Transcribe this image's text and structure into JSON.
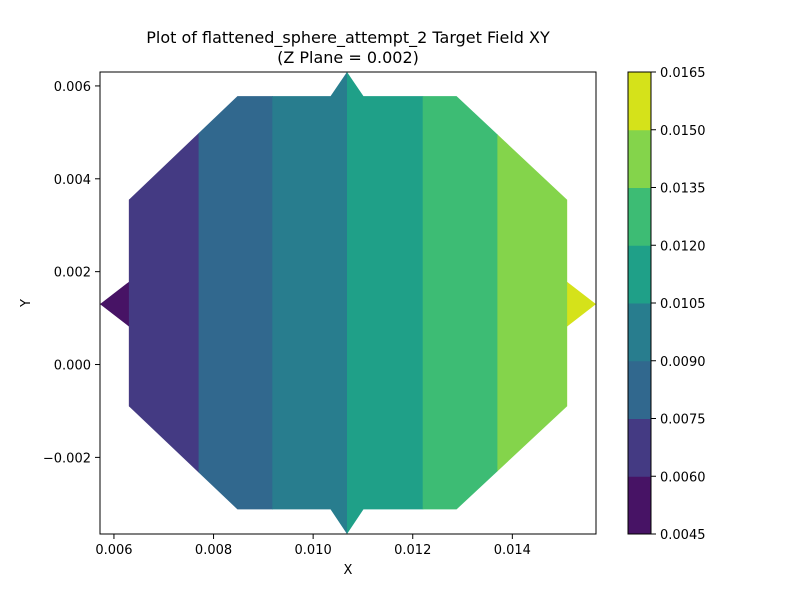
{
  "chart_data": {
    "type": "heatmap",
    "title": "Plot of flattened_sphere_attempt_2 Target Field XY",
    "subtitle": "(Z Plane = 0.002)",
    "xlabel": "X",
    "ylabel": "Y",
    "xlim": [
      0.00572,
      0.01568
    ],
    "ylim": [
      -0.00365,
      0.0063
    ],
    "xticks": [
      0.006,
      0.008,
      0.01,
      0.012,
      0.014
    ],
    "xtick_labels": [
      "0.006",
      "0.008",
      "0.010",
      "0.012",
      "0.014"
    ],
    "yticks": [
      -0.002,
      0.0,
      0.002,
      0.004,
      0.006
    ],
    "ytick_labels": [
      "−0.002",
      "0.000",
      "0.002",
      "0.004",
      "0.006"
    ],
    "colorbar": {
      "levels": [
        0.0045,
        0.006,
        0.0075,
        0.009,
        0.0105,
        0.012,
        0.0135,
        0.015,
        0.0165
      ],
      "tick_labels": [
        "0.0045",
        "0.0060",
        "0.0075",
        "0.0090",
        "0.0105",
        "0.0120",
        "0.0135",
        "0.0150",
        "0.0165"
      ],
      "colors": [
        "#471365",
        "#443a83",
        "#31688e",
        "#287d8e",
        "#1fa088",
        "#3dbc74",
        "#84d44b",
        "#d5e21a"
      ]
    },
    "region_outline": [
      [
        0.00572,
        0.0013
      ],
      [
        0.0063,
        0.00178
      ],
      [
        0.0063,
        0.00355
      ],
      [
        0.00848,
        0.00578
      ],
      [
        0.01035,
        0.00578
      ],
      [
        0.01068,
        0.0063
      ],
      [
        0.01101,
        0.00578
      ],
      [
        0.01288,
        0.00578
      ],
      [
        0.0151,
        0.00355
      ],
      [
        0.0151,
        0.00178
      ],
      [
        0.01568,
        0.0013
      ],
      [
        0.0151,
        0.00082
      ],
      [
        0.0151,
        -0.0009
      ],
      [
        0.01288,
        -0.00312
      ],
      [
        0.01101,
        -0.00312
      ],
      [
        0.01068,
        -0.00365
      ],
      [
        0.01035,
        -0.00312
      ],
      [
        0.00848,
        -0.00312
      ],
      [
        0.0063,
        -0.0009
      ],
      [
        0.0063,
        0.00082
      ]
    ],
    "bands": [
      {
        "x_min": 0.005,
        "x_max": 0.0063,
        "level_index": 0
      },
      {
        "x_min": 0.0063,
        "x_max": 0.0077,
        "level_index": 1
      },
      {
        "x_min": 0.0077,
        "x_max": 0.00918,
        "level_index": 2
      },
      {
        "x_min": 0.00918,
        "x_max": 0.01068,
        "level_index": 3
      },
      {
        "x_min": 0.01068,
        "x_max": 0.0122,
        "level_index": 4
      },
      {
        "x_min": 0.0122,
        "x_max": 0.0137,
        "level_index": 5
      },
      {
        "x_min": 0.0137,
        "x_max": 0.0151,
        "level_index": 6
      },
      {
        "x_min": 0.0151,
        "x_max": 0.016,
        "level_index": 7
      }
    ]
  }
}
